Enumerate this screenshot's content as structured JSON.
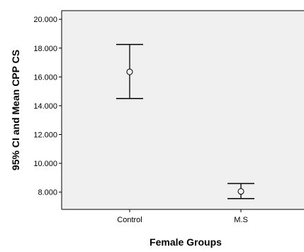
{
  "chart_data": {
    "type": "errorbar",
    "categories": [
      "Control",
      "M.S"
    ],
    "series": [
      {
        "means": [
          16.35,
          8.05
        ],
        "ci_lower": [
          14.5,
          7.55
        ],
        "ci_upper": [
          18.25,
          8.6
        ]
      }
    ],
    "xlabel": "Female Groups",
    "ylabel": "95% CI and Mean CPP CS",
    "ylim": [
      6.8,
      20.6
    ],
    "yticks": [
      8,
      10,
      12,
      14,
      16,
      18,
      20
    ],
    "ytick_labels": [
      "8.000",
      "10.000",
      "12.000",
      "14.000",
      "16.000",
      "18.000",
      "20.000"
    ],
    "grid": false,
    "plot_background": "#f0f0f0",
    "marker": "open-circle",
    "colors": {
      "line": "#000000",
      "background": "#f0f0f0"
    }
  }
}
